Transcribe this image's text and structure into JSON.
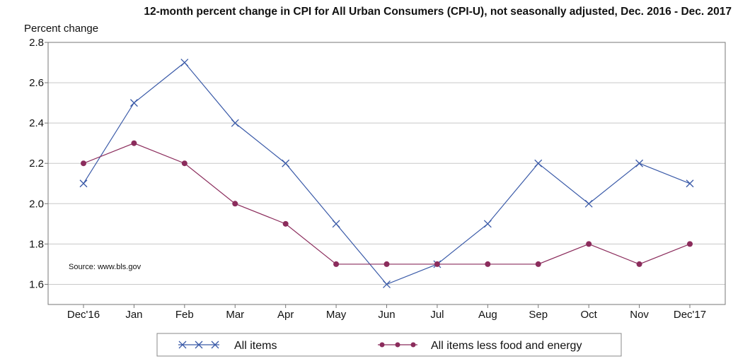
{
  "chart_data": {
    "type": "line",
    "title": "12-month percent change in CPI for All Urban Consumers (CPI-U), not seasonally adjusted, Dec. 2016 - Dec. 2017",
    "ylabel": "Percent change",
    "xlabel": "",
    "categories": [
      "Dec'16",
      "Jan",
      "Feb",
      "Mar",
      "Apr",
      "May",
      "Jun",
      "Jul",
      "Aug",
      "Sep",
      "Oct",
      "Nov",
      "Dec'17"
    ],
    "ylim": [
      1.5,
      2.8
    ],
    "yticks": [
      "1.6",
      "1.8",
      "2.0",
      "2.2",
      "2.4",
      "2.6",
      "2.8"
    ],
    "grid": "horizontal",
    "legend_position": "bottom",
    "annotation": "Source: www.bls.gov",
    "series": [
      {
        "name": "All items",
        "color": "#3a5aa8",
        "marker": "x",
        "values": [
          2.1,
          2.5,
          2.7,
          2.4,
          2.2,
          1.9,
          1.6,
          1.7,
          1.9,
          2.2,
          2.0,
          2.2,
          2.1
        ]
      },
      {
        "name": "All items less food and energy",
        "color": "#8b2c5c",
        "marker": "circle",
        "values": [
          2.2,
          2.3,
          2.2,
          2.0,
          1.9,
          1.7,
          1.7,
          1.7,
          1.7,
          1.7,
          1.8,
          1.7,
          1.8
        ]
      }
    ]
  }
}
